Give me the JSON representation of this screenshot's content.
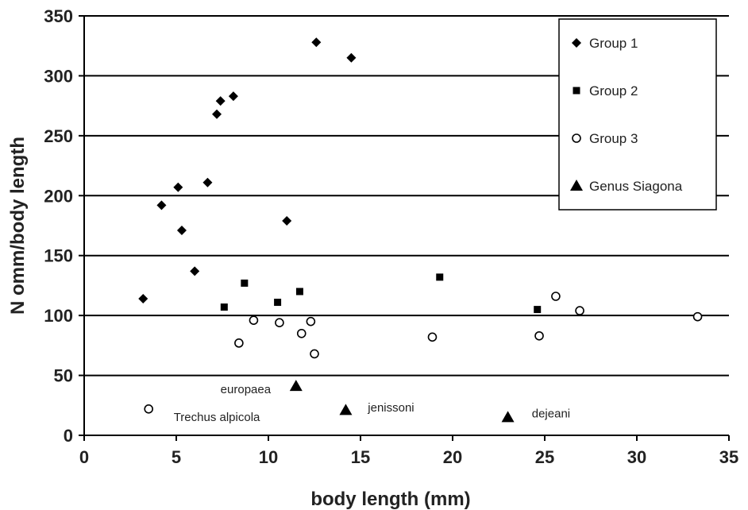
{
  "chart_data": {
    "type": "scatter",
    "xlabel": "body length (mm)",
    "ylabel": "N omm/body length",
    "xlim": [
      0,
      35
    ],
    "ylim": [
      0,
      350
    ],
    "xticks": [
      "0",
      "5",
      "10",
      "15",
      "20",
      "25",
      "30",
      "35"
    ],
    "yticks": [
      "0",
      "50",
      "100",
      "150",
      "200",
      "250",
      "300",
      "350"
    ],
    "grid": "horizontal",
    "legend_position": "top-right",
    "series": [
      {
        "name": "Group 1",
        "marker": "diamond",
        "color": "#000000",
        "points": [
          {
            "x": 3.2,
            "y": 114
          },
          {
            "x": 4.2,
            "y": 192
          },
          {
            "x": 5.1,
            "y": 207
          },
          {
            "x": 5.3,
            "y": 171
          },
          {
            "x": 6.0,
            "y": 137
          },
          {
            "x": 6.7,
            "y": 211
          },
          {
            "x": 7.2,
            "y": 268
          },
          {
            "x": 7.4,
            "y": 279
          },
          {
            "x": 8.1,
            "y": 283
          },
          {
            "x": 11.0,
            "y": 179
          },
          {
            "x": 12.6,
            "y": 328
          },
          {
            "x": 14.5,
            "y": 315
          }
        ]
      },
      {
        "name": "Group 2",
        "marker": "square",
        "color": "#000000",
        "points": [
          {
            "x": 7.6,
            "y": 107
          },
          {
            "x": 8.7,
            "y": 127
          },
          {
            "x": 10.5,
            "y": 111
          },
          {
            "x": 11.7,
            "y": 120
          },
          {
            "x": 19.3,
            "y": 132
          },
          {
            "x": 24.6,
            "y": 105
          }
        ]
      },
      {
        "name": "Group 3",
        "marker": "open-circle",
        "color": "#000000",
        "points": [
          {
            "x": 3.5,
            "y": 22
          },
          {
            "x": 8.4,
            "y": 77
          },
          {
            "x": 9.2,
            "y": 96
          },
          {
            "x": 10.6,
            "y": 94
          },
          {
            "x": 11.8,
            "y": 85
          },
          {
            "x": 12.3,
            "y": 95
          },
          {
            "x": 12.5,
            "y": 68
          },
          {
            "x": 18.9,
            "y": 82
          },
          {
            "x": 24.7,
            "y": 83
          },
          {
            "x": 25.6,
            "y": 116
          },
          {
            "x": 26.9,
            "y": 104
          },
          {
            "x": 33.3,
            "y": 99
          }
        ]
      },
      {
        "name": "Genus Siagona",
        "marker": "triangle",
        "color": "#000000",
        "points": [
          {
            "x": 11.5,
            "y": 41
          },
          {
            "x": 14.2,
            "y": 21
          },
          {
            "x": 23.0,
            "y": 15
          }
        ]
      }
    ],
    "annotations": [
      {
        "text": "Trechus alpicola",
        "x": 7.2,
        "y": 12,
        "anchor": "middle"
      },
      {
        "text": "europaea",
        "x": 7.4,
        "y": 35,
        "anchor": "start"
      },
      {
        "text": "jenissoni",
        "x": 15.4,
        "y": 20,
        "anchor": "start"
      },
      {
        "text": "dejeani",
        "x": 24.3,
        "y": 15,
        "anchor": "start"
      }
    ]
  }
}
